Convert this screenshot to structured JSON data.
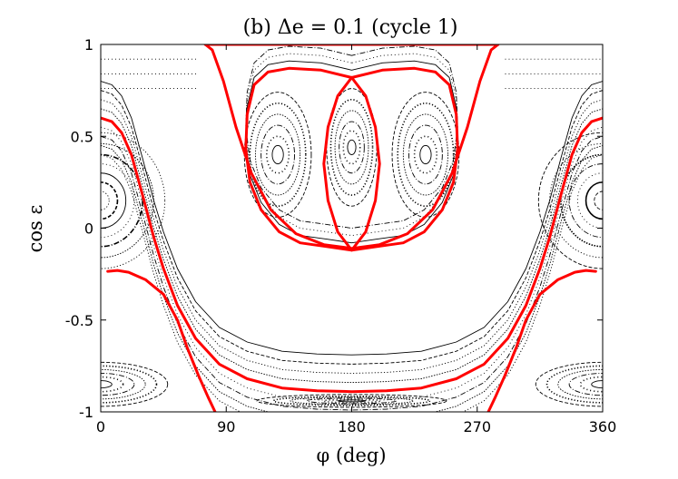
{
  "chart_data": {
    "type": "line",
    "title": "(b) Δe = 0.1 (cycle 1)",
    "xlabel": "φ (deg)",
    "ylabel": "cos ε",
    "xlim": [
      0,
      360
    ],
    "ylim": [
      -1,
      1
    ],
    "xticks": [
      0,
      90,
      180,
      270,
      360
    ],
    "xtick_labels": [
      "0",
      "90",
      "180",
      "270",
      "360"
    ],
    "yticks": [
      -1,
      -0.5,
      0,
      0.5,
      1
    ],
    "ytick_labels": [
      "-1",
      "-0.5",
      "0",
      "0.5",
      "1"
    ],
    "grid": false,
    "background_trajectory_color": "#000000",
    "separatrix_color": "#ff0000",
    "centers": [
      {
        "phi": 0,
        "cos_eps": 0.15
      },
      {
        "phi": 360,
        "cos_eps": 0.15
      },
      {
        "phi": 127,
        "cos_eps": 0.4
      },
      {
        "phi": 180,
        "cos_eps": 0.44
      },
      {
        "phi": 233,
        "cos_eps": 0.4
      },
      {
        "phi": 0,
        "cos_eps": -0.85
      },
      {
        "phi": 360,
        "cos_eps": -0.85
      },
      {
        "phi": 180,
        "cos_eps": -0.94
      }
    ],
    "series": [
      {
        "values": [
          [
            75,
            1.0
          ],
          [
            80,
            0.97
          ],
          [
            88,
            0.8
          ],
          [
            97,
            0.55
          ],
          [
            108,
            0.3
          ],
          [
            122,
            0.1
          ],
          [
            140,
            -0.03
          ],
          [
            160,
            -0.09
          ],
          [
            180,
            -0.11
          ],
          [
            200,
            -0.09
          ],
          [
            220,
            -0.03
          ],
          [
            238,
            0.1
          ],
          [
            252,
            0.3
          ],
          [
            263,
            0.55
          ],
          [
            272,
            0.8
          ],
          [
            280,
            0.97
          ],
          [
            285,
            1.0
          ]
        ]
      },
      {
        "values": [
          [
            180,
            0.82
          ],
          [
            158,
            0.86
          ],
          [
            135,
            0.87
          ],
          [
            120,
            0.85
          ],
          [
            110,
            0.78
          ],
          [
            105,
            0.62
          ],
          [
            104,
            0.43
          ],
          [
            107,
            0.25
          ],
          [
            115,
            0.1
          ],
          [
            128,
            -0.02
          ],
          [
            143,
            -0.08
          ],
          [
            162,
            -0.1
          ],
          [
            180,
            -0.12
          ],
          [
            198,
            -0.1
          ],
          [
            217,
            -0.08
          ],
          [
            232,
            -0.02
          ],
          [
            245,
            0.1
          ],
          [
            253,
            0.25
          ],
          [
            256,
            0.43
          ],
          [
            255,
            0.62
          ],
          [
            250,
            0.78
          ],
          [
            240,
            0.85
          ],
          [
            225,
            0.87
          ],
          [
            202,
            0.86
          ],
          [
            180,
            0.82
          ]
        ]
      },
      {
        "values": [
          [
            180,
            0.82
          ],
          [
            170,
            0.72
          ],
          [
            163,
            0.55
          ],
          [
            160,
            0.35
          ],
          [
            163,
            0.15
          ],
          [
            170,
            -0.02
          ],
          [
            180,
            -0.12
          ],
          [
            190,
            -0.02
          ],
          [
            197,
            0.15
          ],
          [
            200,
            0.35
          ],
          [
            197,
            0.55
          ],
          [
            190,
            0.72
          ],
          [
            180,
            0.82
          ]
        ]
      },
      {
        "values": [
          [
            0,
            0.6
          ],
          [
            8,
            0.58
          ],
          [
            15,
            0.52
          ],
          [
            22,
            0.4
          ],
          [
            30,
            0.18
          ],
          [
            38,
            -0.05
          ],
          [
            45,
            -0.22
          ],
          [
            55,
            -0.42
          ],
          [
            68,
            -0.6
          ],
          [
            85,
            -0.74
          ],
          [
            105,
            -0.82
          ],
          [
            130,
            -0.87
          ],
          [
            155,
            -0.885
          ],
          [
            180,
            -0.89
          ],
          [
            205,
            -0.885
          ],
          [
            230,
            -0.87
          ],
          [
            255,
            -0.82
          ],
          [
            275,
            -0.74
          ],
          [
            292,
            -0.6
          ],
          [
            305,
            -0.42
          ],
          [
            315,
            -0.22
          ],
          [
            322,
            -0.05
          ],
          [
            330,
            0.18
          ],
          [
            338,
            0.4
          ],
          [
            345,
            0.52
          ],
          [
            352,
            0.58
          ],
          [
            360,
            0.6
          ]
        ]
      },
      {
        "values": [
          [
            5,
            -0.235
          ],
          [
            12,
            -0.23
          ],
          [
            20,
            -0.24
          ],
          [
            32,
            -0.28
          ],
          [
            45,
            -0.36
          ],
          [
            55,
            -0.5
          ],
          [
            62,
            -0.65
          ],
          [
            70,
            -0.8
          ],
          [
            77,
            -0.92
          ],
          [
            82,
            -1.0
          ]
        ]
      },
      {
        "values": [
          [
            355,
            -0.235
          ],
          [
            348,
            -0.23
          ],
          [
            340,
            -0.24
          ],
          [
            328,
            -0.28
          ],
          [
            315,
            -0.36
          ],
          [
            305,
            -0.5
          ],
          [
            298,
            -0.65
          ],
          [
            290,
            -0.8
          ],
          [
            283,
            -0.92
          ],
          [
            278,
            -1.0
          ]
        ]
      },
      {
        "values": [
          [
            75,
            1.0
          ],
          [
            285,
            1.0
          ]
        ]
      }
    ]
  }
}
